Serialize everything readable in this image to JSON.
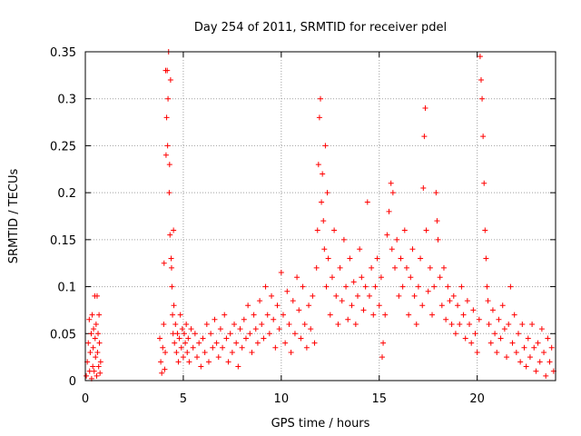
{
  "chart_data": {
    "type": "scatter",
    "title": "Day 254 of 2011, SRMTID for receiver pdel",
    "xlabel": "GPS time / hours",
    "ylabel": "SRMTID / TECUs",
    "xlim": [
      0,
      24
    ],
    "ylim": [
      0,
      0.35
    ],
    "x_ticks": [
      0,
      5,
      10,
      15,
      20
    ],
    "x_tick_labels": [
      "0",
      "5",
      "10",
      "15",
      "20"
    ],
    "y_ticks": [
      0,
      0.05,
      0.1,
      0.15,
      0.2,
      0.25,
      0.3,
      0.35
    ],
    "y_tick_labels": [
      "0",
      "0.05",
      "0.1",
      "0.15",
      "0.2",
      "0.25",
      "0.3",
      "0.35"
    ],
    "grid": true,
    "marker": "+",
    "color": "#ff0000",
    "series": [
      {
        "name": "SRMTID",
        "points": [
          [
            0.05,
            0.005
          ],
          [
            0.1,
            0.02
          ],
          [
            0.15,
            0.04
          ],
          [
            0.2,
            0.065
          ],
          [
            0.22,
            0.01
          ],
          [
            0.25,
            0.03
          ],
          [
            0.3,
            0.05
          ],
          [
            0.32,
            0.002
          ],
          [
            0.35,
            0.07
          ],
          [
            0.38,
            0.015
          ],
          [
            0.4,
            0.035
          ],
          [
            0.42,
            0.055
          ],
          [
            0.45,
            0.01
          ],
          [
            0.48,
            0.09
          ],
          [
            0.5,
            0.045
          ],
          [
            0.52,
            0.025
          ],
          [
            0.55,
            0.06
          ],
          [
            0.58,
            0.005
          ],
          [
            0.6,
            0.09
          ],
          [
            0.62,
            0.03
          ],
          [
            0.65,
            0.05
          ],
          [
            0.68,
            0.015
          ],
          [
            0.7,
            0.07
          ],
          [
            0.72,
            0.04
          ],
          [
            0.75,
            0.008
          ],
          [
            0.78,
            0.02
          ],
          [
            3.8,
            0.045
          ],
          [
            3.85,
            0.02
          ],
          [
            3.9,
            0.008
          ],
          [
            3.95,
            0.035
          ],
          [
            4.0,
            0.06
          ],
          [
            4.02,
            0.125
          ],
          [
            4.05,
            0.012
          ],
          [
            4.08,
            0.03
          ],
          [
            4.1,
            0.33
          ],
          [
            4.12,
            0.24
          ],
          [
            4.15,
            0.28
          ],
          [
            4.18,
            0.33
          ],
          [
            4.2,
            0.25
          ],
          [
            4.22,
            0.3
          ],
          [
            4.25,
            0.35
          ],
          [
            4.28,
            0.2
          ],
          [
            4.3,
            0.23
          ],
          [
            4.32,
            0.155
          ],
          [
            4.35,
            0.32
          ],
          [
            4.38,
            0.13
          ],
          [
            4.4,
            0.12
          ],
          [
            4.42,
            0.1
          ],
          [
            4.45,
            0.07
          ],
          [
            4.48,
            0.05
          ],
          [
            4.5,
            0.16
          ],
          [
            4.52,
            0.08
          ],
          [
            4.55,
            0.04
          ],
          [
            4.6,
            0.06
          ],
          [
            4.65,
            0.03
          ],
          [
            4.7,
            0.05
          ],
          [
            4.75,
            0.02
          ],
          [
            4.8,
            0.045
          ],
          [
            4.85,
            0.07
          ],
          [
            4.9,
            0.035
          ],
          [
            4.95,
            0.055
          ],
          [
            5.0,
            0.025
          ],
          [
            5.05,
            0.05
          ],
          [
            5.1,
            0.04
          ],
          [
            5.15,
            0.06
          ],
          [
            5.2,
            0.03
          ],
          [
            5.25,
            0.045
          ],
          [
            5.3,
            0.02
          ],
          [
            5.4,
            0.055
          ],
          [
            5.5,
            0.035
          ],
          [
            5.6,
            0.05
          ],
          [
            5.7,
            0.025
          ],
          [
            5.8,
            0.04
          ],
          [
            5.9,
            0.015
          ],
          [
            6.0,
            0.045
          ],
          [
            6.1,
            0.03
          ],
          [
            6.2,
            0.06
          ],
          [
            6.3,
            0.02
          ],
          [
            6.4,
            0.05
          ],
          [
            6.5,
            0.035
          ],
          [
            6.6,
            0.065
          ],
          [
            6.7,
            0.04
          ],
          [
            6.8,
            0.025
          ],
          [
            6.9,
            0.055
          ],
          [
            7.0,
            0.035
          ],
          [
            7.1,
            0.07
          ],
          [
            7.2,
            0.045
          ],
          [
            7.3,
            0.02
          ],
          [
            7.4,
            0.05
          ],
          [
            7.5,
            0.03
          ],
          [
            7.6,
            0.06
          ],
          [
            7.7,
            0.04
          ],
          [
            7.8,
            0.015
          ],
          [
            7.9,
            0.055
          ],
          [
            8.0,
            0.035
          ],
          [
            8.1,
            0.065
          ],
          [
            8.2,
            0.045
          ],
          [
            8.3,
            0.08
          ],
          [
            8.4,
            0.05
          ],
          [
            8.5,
            0.03
          ],
          [
            8.6,
            0.07
          ],
          [
            8.7,
            0.055
          ],
          [
            8.8,
            0.04
          ],
          [
            8.9,
            0.085
          ],
          [
            9.0,
            0.06
          ],
          [
            9.1,
            0.045
          ],
          [
            9.2,
            0.1
          ],
          [
            9.3,
            0.07
          ],
          [
            9.4,
            0.05
          ],
          [
            9.5,
            0.09
          ],
          [
            9.6,
            0.065
          ],
          [
            9.7,
            0.035
          ],
          [
            9.8,
            0.08
          ],
          [
            9.9,
            0.055
          ],
          [
            10.0,
            0.115
          ],
          [
            10.1,
            0.07
          ],
          [
            10.2,
            0.04
          ],
          [
            10.3,
            0.095
          ],
          [
            10.4,
            0.06
          ],
          [
            10.5,
            0.03
          ],
          [
            10.6,
            0.085
          ],
          [
            10.7,
            0.05
          ],
          [
            10.8,
            0.11
          ],
          [
            10.9,
            0.075
          ],
          [
            11.0,
            0.045
          ],
          [
            11.1,
            0.1
          ],
          [
            11.2,
            0.06
          ],
          [
            11.3,
            0.035
          ],
          [
            11.4,
            0.08
          ],
          [
            11.5,
            0.055
          ],
          [
            11.6,
            0.09
          ],
          [
            11.7,
            0.04
          ],
          [
            11.8,
            0.12
          ],
          [
            11.85,
            0.16
          ],
          [
            11.9,
            0.23
          ],
          [
            11.95,
            0.28
          ],
          [
            12.0,
            0.3
          ],
          [
            12.05,
            0.19
          ],
          [
            12.1,
            0.22
          ],
          [
            12.15,
            0.17
          ],
          [
            12.2,
            0.14
          ],
          [
            12.25,
            0.25
          ],
          [
            12.3,
            0.1
          ],
          [
            12.35,
            0.2
          ],
          [
            12.4,
            0.13
          ],
          [
            12.5,
            0.07
          ],
          [
            12.6,
            0.11
          ],
          [
            12.7,
            0.16
          ],
          [
            12.8,
            0.09
          ],
          [
            12.9,
            0.06
          ],
          [
            13.0,
            0.12
          ],
          [
            13.1,
            0.085
          ],
          [
            13.2,
            0.15
          ],
          [
            13.3,
            0.1
          ],
          [
            13.4,
            0.065
          ],
          [
            13.5,
            0.13
          ],
          [
            13.6,
            0.08
          ],
          [
            13.7,
            0.105
          ],
          [
            13.8,
            0.06
          ],
          [
            13.9,
            0.09
          ],
          [
            14.0,
            0.14
          ],
          [
            14.1,
            0.11
          ],
          [
            14.2,
            0.075
          ],
          [
            14.3,
            0.1
          ],
          [
            14.4,
            0.19
          ],
          [
            14.5,
            0.09
          ],
          [
            14.6,
            0.12
          ],
          [
            14.7,
            0.07
          ],
          [
            14.8,
            0.1
          ],
          [
            14.9,
            0.13
          ],
          [
            15.0,
            0.08
          ],
          [
            15.1,
            0.11
          ],
          [
            15.15,
            0.025
          ],
          [
            15.2,
            0.04
          ],
          [
            15.3,
            0.07
          ],
          [
            15.4,
            0.155
          ],
          [
            15.5,
            0.18
          ],
          [
            15.6,
            0.21
          ],
          [
            15.65,
            0.14
          ],
          [
            15.7,
            0.2
          ],
          [
            15.8,
            0.12
          ],
          [
            15.9,
            0.15
          ],
          [
            16.0,
            0.09
          ],
          [
            16.1,
            0.13
          ],
          [
            16.2,
            0.1
          ],
          [
            16.3,
            0.16
          ],
          [
            16.4,
            0.12
          ],
          [
            16.5,
            0.07
          ],
          [
            16.6,
            0.11
          ],
          [
            16.7,
            0.14
          ],
          [
            16.8,
            0.09
          ],
          [
            16.9,
            0.06
          ],
          [
            17.0,
            0.1
          ],
          [
            17.1,
            0.13
          ],
          [
            17.2,
            0.08
          ],
          [
            17.25,
            0.205
          ],
          [
            17.3,
            0.26
          ],
          [
            17.35,
            0.29
          ],
          [
            17.4,
            0.16
          ],
          [
            17.5,
            0.095
          ],
          [
            17.6,
            0.12
          ],
          [
            17.7,
            0.07
          ],
          [
            17.8,
            0.1
          ],
          [
            17.9,
            0.2
          ],
          [
            17.95,
            0.17
          ],
          [
            18.0,
            0.15
          ],
          [
            18.1,
            0.11
          ],
          [
            18.2,
            0.08
          ],
          [
            18.3,
            0.12
          ],
          [
            18.4,
            0.065
          ],
          [
            18.5,
            0.1
          ],
          [
            18.6,
            0.085
          ],
          [
            18.7,
            0.06
          ],
          [
            18.8,
            0.09
          ],
          [
            18.9,
            0.05
          ],
          [
            19.0,
            0.08
          ],
          [
            19.1,
            0.06
          ],
          [
            19.2,
            0.1
          ],
          [
            19.3,
            0.07
          ],
          [
            19.4,
            0.045
          ],
          [
            19.5,
            0.085
          ],
          [
            19.6,
            0.06
          ],
          [
            19.7,
            0.04
          ],
          [
            19.8,
            0.075
          ],
          [
            19.9,
            0.05
          ],
          [
            20.0,
            0.03
          ],
          [
            20.1,
            0.065
          ],
          [
            20.15,
            0.345
          ],
          [
            20.2,
            0.32
          ],
          [
            20.25,
            0.3
          ],
          [
            20.3,
            0.26
          ],
          [
            20.35,
            0.21
          ],
          [
            20.4,
            0.16
          ],
          [
            20.45,
            0.13
          ],
          [
            20.5,
            0.1
          ],
          [
            20.55,
            0.085
          ],
          [
            20.6,
            0.06
          ],
          [
            20.7,
            0.04
          ],
          [
            20.8,
            0.075
          ],
          [
            20.9,
            0.05
          ],
          [
            21.0,
            0.03
          ],
          [
            21.1,
            0.065
          ],
          [
            21.2,
            0.045
          ],
          [
            21.3,
            0.08
          ],
          [
            21.4,
            0.055
          ],
          [
            21.5,
            0.025
          ],
          [
            21.6,
            0.06
          ],
          [
            21.7,
            0.1
          ],
          [
            21.8,
            0.04
          ],
          [
            21.9,
            0.07
          ],
          [
            22.0,
            0.03
          ],
          [
            22.1,
            0.05
          ],
          [
            22.2,
            0.02
          ],
          [
            22.3,
            0.06
          ],
          [
            22.4,
            0.035
          ],
          [
            22.5,
            0.015
          ],
          [
            22.6,
            0.045
          ],
          [
            22.7,
            0.025
          ],
          [
            22.8,
            0.06
          ],
          [
            22.9,
            0.035
          ],
          [
            23.0,
            0.01
          ],
          [
            23.1,
            0.04
          ],
          [
            23.2,
            0.02
          ],
          [
            23.3,
            0.055
          ],
          [
            23.4,
            0.03
          ],
          [
            23.5,
            0.005
          ],
          [
            23.6,
            0.045
          ],
          [
            23.7,
            0.02
          ],
          [
            23.8,
            0.035
          ],
          [
            23.9,
            0.01
          ]
        ]
      }
    ]
  }
}
